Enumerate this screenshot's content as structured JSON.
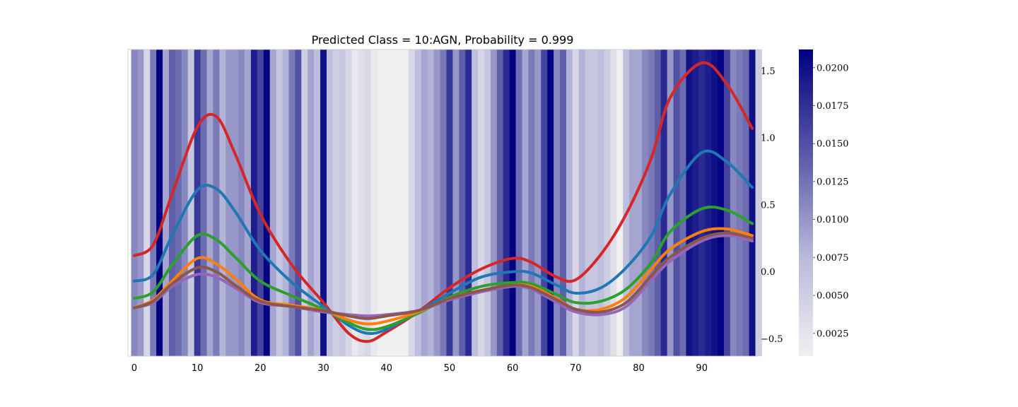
{
  "chart_data": {
    "type": "line",
    "title": "Predicted Class = 10:AGN, Probability = 0.999",
    "xlabel": "",
    "ylabel": "",
    "xlim": [
      -1,
      99
    ],
    "ylim": [
      -0.63,
      1.66
    ],
    "x_ticks": [
      0,
      10,
      20,
      30,
      40,
      50,
      60,
      70,
      80,
      90
    ],
    "y_ticks": [
      -0.5,
      0.0,
      0.5,
      1.0,
      1.5
    ],
    "y_tick_labels": [
      "−0.5",
      "0.0",
      "0.5",
      "1.0",
      "1.5"
    ],
    "grid": false,
    "legend": "none",
    "x": [
      0,
      3,
      6,
      10,
      13,
      16,
      20,
      25,
      30,
      34,
      37,
      40,
      45,
      50,
      55,
      60,
      63,
      67,
      70,
      74,
      78,
      82,
      85,
      90,
      94,
      98
    ],
    "series": [
      {
        "color": "#d62728",
        "values": [
          0.12,
          0.2,
          0.58,
          1.08,
          1.16,
          0.88,
          0.43,
          0.05,
          -0.23,
          -0.46,
          -0.52,
          -0.45,
          -0.3,
          -0.12,
          0.02,
          0.1,
          0.07,
          -0.04,
          -0.06,
          0.13,
          0.43,
          0.85,
          1.3,
          1.56,
          1.4,
          1.07
        ]
      },
      {
        "color": "#1f77b4",
        "values": [
          -0.07,
          -0.02,
          0.27,
          0.61,
          0.62,
          0.45,
          0.16,
          -0.08,
          -0.26,
          -0.4,
          -0.46,
          -0.43,
          -0.3,
          -0.16,
          -0.04,
          0.0,
          -0.01,
          -0.1,
          -0.16,
          -0.12,
          0.03,
          0.27,
          0.58,
          0.89,
          0.82,
          0.63
        ]
      },
      {
        "color": "#2ca02c",
        "values": [
          -0.2,
          -0.15,
          0.05,
          0.27,
          0.24,
          0.11,
          -0.07,
          -0.18,
          -0.28,
          -0.38,
          -0.43,
          -0.41,
          -0.31,
          -0.19,
          -0.11,
          -0.08,
          -0.09,
          -0.17,
          -0.23,
          -0.22,
          -0.13,
          0.07,
          0.3,
          0.47,
          0.46,
          0.36
        ]
      },
      {
        "color": "#ff7f0e",
        "values": [
          -0.27,
          -0.21,
          -0.07,
          0.1,
          0.06,
          -0.05,
          -0.21,
          -0.25,
          -0.29,
          -0.36,
          -0.39,
          -0.37,
          -0.3,
          -0.2,
          -0.14,
          -0.1,
          -0.11,
          -0.2,
          -0.28,
          -0.28,
          -0.19,
          0.02,
          0.17,
          0.3,
          0.32,
          0.27
        ]
      },
      {
        "color": "#9467bd",
        "values": [
          -0.27,
          -0.23,
          -0.11,
          -0.02,
          -0.04,
          -0.12,
          -0.23,
          -0.26,
          -0.3,
          -0.32,
          -0.33,
          -0.32,
          -0.29,
          -0.21,
          -0.15,
          -0.11,
          -0.13,
          -0.23,
          -0.3,
          -0.32,
          -0.26,
          -0.06,
          0.08,
          0.23,
          0.27,
          0.23
        ]
      },
      {
        "color": "#8c564b",
        "values": [
          -0.27,
          -0.22,
          -0.09,
          0.03,
          0.0,
          -0.1,
          -0.22,
          -0.26,
          -0.29,
          -0.33,
          -0.35,
          -0.33,
          -0.29,
          -0.2,
          -0.14,
          -0.1,
          -0.12,
          -0.21,
          -0.28,
          -0.3,
          -0.23,
          -0.03,
          0.11,
          0.25,
          0.29,
          0.25
        ]
      }
    ],
    "attention": [
      0.011,
      0.01,
      0.004,
      0.012,
      0.021,
      0.009,
      0.014,
      0.013,
      0.011,
      0.006,
      0.017,
      0.013,
      0.009,
      0.012,
      0.008,
      0.01,
      0.01,
      0.011,
      0.009,
      0.019,
      0.016,
      0.021,
      0.009,
      0.006,
      0.008,
      0.012,
      0.015,
      0.005,
      0.009,
      0.007,
      0.02,
      0.007,
      0.005,
      0.006,
      0.004,
      0.002,
      0.003,
      0.004,
      0.002,
      0.001,
      0.001,
      0.001,
      0.001,
      0.001,
      0.004,
      0.007,
      0.009,
      0.008,
      0.01,
      0.012,
      0.017,
      0.01,
      0.014,
      0.018,
      0.007,
      0.004,
      0.006,
      0.01,
      0.014,
      0.018,
      0.022,
      0.013,
      0.009,
      0.012,
      0.01,
      0.016,
      0.021,
      0.011,
      0.014,
      0.008,
      0.004,
      0.008,
      0.006,
      0.006,
      0.007,
      0.005,
      0.003,
      0.001,
      0.007,
      0.009,
      0.009,
      0.011,
      0.012,
      0.014,
      0.018,
      0.01,
      0.015,
      0.013,
      0.02,
      0.019,
      0.018,
      0.019,
      0.02,
      0.021,
      0.016,
      0.011,
      0.012,
      0.013,
      0.02,
      0.005
    ],
    "colorbar": {
      "range": [
        0.001,
        0.0212
      ],
      "ticks": [
        0.0025,
        0.005,
        0.0075,
        0.01,
        0.0125,
        0.015,
        0.0175,
        0.02
      ],
      "tick_labels": [
        "0.0025",
        "0.0050",
        "0.0075",
        "0.0100",
        "0.0125",
        "0.0150",
        "0.0175",
        "0.0200"
      ]
    }
  }
}
